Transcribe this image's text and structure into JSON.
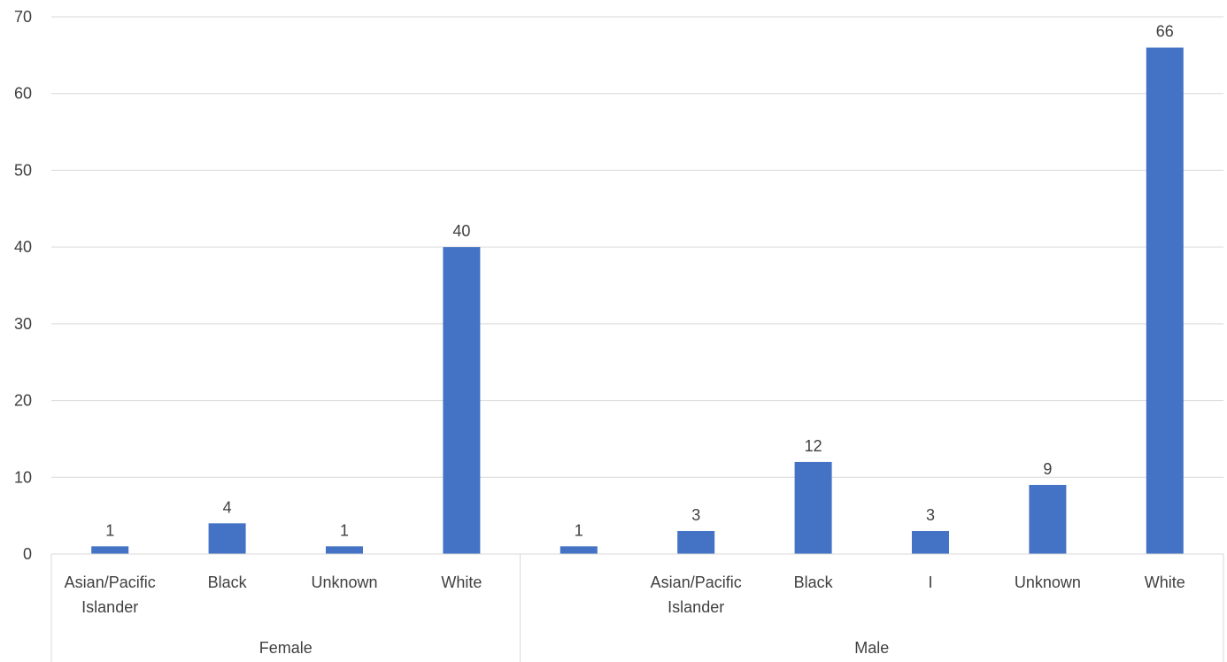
{
  "chart_data": {
    "type": "bar",
    "title": "",
    "xlabel": "",
    "ylabel": "",
    "ylim": [
      0,
      70
    ],
    "yticks": [
      0,
      10,
      20,
      30,
      40,
      50,
      60,
      70
    ],
    "grid": true,
    "legend": "none",
    "bar_color": "#4472C4",
    "groups": [
      {
        "label": "Female",
        "categories": [
          {
            "label": [
              "Asian/Pacific",
              "Islander"
            ],
            "value": 1
          },
          {
            "label": [
              "Black"
            ],
            "value": 4
          },
          {
            "label": [
              "Unknown"
            ],
            "value": 1
          },
          {
            "label": [
              "White"
            ],
            "value": 40
          }
        ]
      },
      {
        "label": "Male",
        "categories": [
          {
            "label": [
              ""
            ],
            "value": 1
          },
          {
            "label": [
              "Asian/Pacific",
              "Islander"
            ],
            "value": 3
          },
          {
            "label": [
              "Black"
            ],
            "value": 12
          },
          {
            "label": [
              "I"
            ],
            "value": 3
          },
          {
            "label": [
              "Unknown"
            ],
            "value": 9
          },
          {
            "label": [
              "White"
            ],
            "value": 66
          }
        ]
      }
    ]
  }
}
